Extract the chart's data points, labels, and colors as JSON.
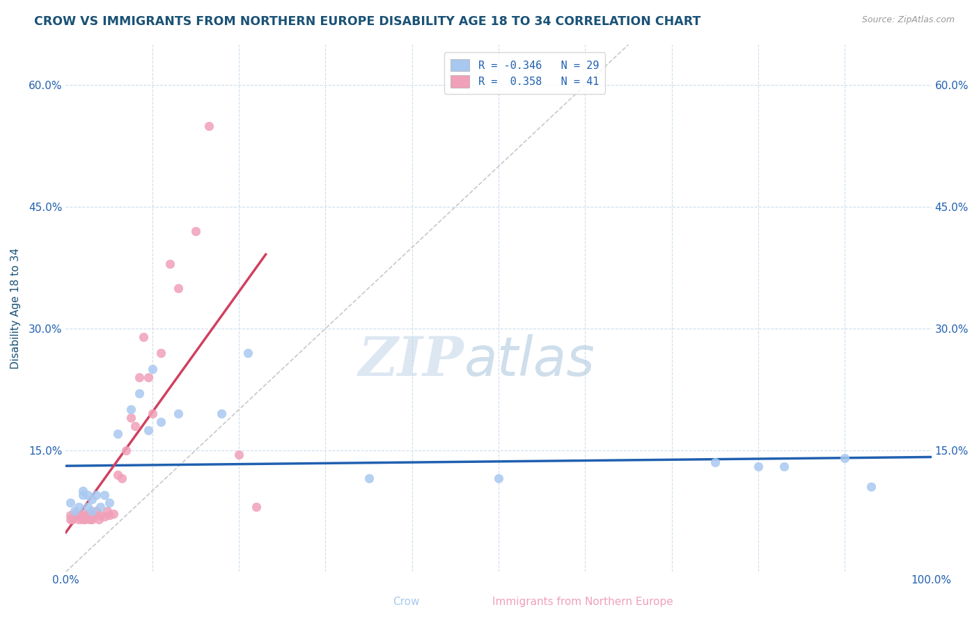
{
  "title": "CROW VS IMMIGRANTS FROM NORTHERN EUROPE DISABILITY AGE 18 TO 34 CORRELATION CHART",
  "source": "Source: ZipAtlas.com",
  "ylabel": "Disability Age 18 to 34",
  "xlim": [
    0.0,
    1.0
  ],
  "ylim": [
    0.0,
    0.65
  ],
  "xtick_positions": [
    0.0,
    0.1,
    0.2,
    0.3,
    0.4,
    0.5,
    0.6,
    0.7,
    0.8,
    0.9,
    1.0
  ],
  "xticklabels": [
    "0.0%",
    "",
    "",
    "",
    "",
    "",
    "",
    "",
    "",
    "",
    "100.0%"
  ],
  "ytick_positions": [
    0.0,
    0.15,
    0.3,
    0.45,
    0.6
  ],
  "yticklabels": [
    "",
    "15.0%",
    "30.0%",
    "45.0%",
    "60.0%"
  ],
  "legend_R1": "R = -0.346",
  "legend_N1": "N = 29",
  "legend_R2": "R =  0.358",
  "legend_N2": "N = 41",
  "crow_color": "#a8c8f0",
  "immigrant_color": "#f0a0b8",
  "crow_line_color": "#2060b0",
  "immigrant_line_color": "#d04060",
  "diagonal_color": "#c8c8c8",
  "title_color": "#1a5276",
  "axis_label_color": "#1a5276",
  "right_tick_color": "#2060b0",
  "background_color": "#ffffff",
  "crow_x": [
    0.005,
    0.01,
    0.015,
    0.02,
    0.02,
    0.025,
    0.025,
    0.03,
    0.03,
    0.035,
    0.04,
    0.045,
    0.05,
    0.06,
    0.075,
    0.085,
    0.095,
    0.1,
    0.11,
    0.13,
    0.18,
    0.21,
    0.35,
    0.5,
    0.75,
    0.8,
    0.83,
    0.9,
    0.93
  ],
  "crow_y": [
    0.085,
    0.075,
    0.08,
    0.095,
    0.1,
    0.08,
    0.095,
    0.075,
    0.09,
    0.095,
    0.08,
    0.095,
    0.085,
    0.17,
    0.2,
    0.22,
    0.175,
    0.25,
    0.185,
    0.195,
    0.195,
    0.27,
    0.115,
    0.115,
    0.135,
    0.13,
    0.13,
    0.14,
    0.105
  ],
  "immigrant_x": [
    0.005,
    0.005,
    0.008,
    0.01,
    0.01,
    0.012,
    0.015,
    0.015,
    0.018,
    0.02,
    0.02,
    0.022,
    0.025,
    0.025,
    0.028,
    0.03,
    0.03,
    0.032,
    0.035,
    0.038,
    0.04,
    0.045,
    0.048,
    0.05,
    0.055,
    0.06,
    0.065,
    0.07,
    0.075,
    0.08,
    0.085,
    0.09,
    0.095,
    0.1,
    0.11,
    0.12,
    0.13,
    0.15,
    0.165,
    0.2,
    0.22
  ],
  "immigrant_y": [
    0.065,
    0.07,
    0.065,
    0.068,
    0.072,
    0.07,
    0.065,
    0.07,
    0.068,
    0.065,
    0.072,
    0.065,
    0.068,
    0.072,
    0.065,
    0.065,
    0.072,
    0.068,
    0.075,
    0.065,
    0.07,
    0.068,
    0.075,
    0.07,
    0.072,
    0.12,
    0.115,
    0.15,
    0.19,
    0.18,
    0.24,
    0.29,
    0.24,
    0.195,
    0.27,
    0.38,
    0.35,
    0.42,
    0.55,
    0.145,
    0.08
  ],
  "watermark_zip": "ZIP",
  "watermark_atlas": "atlas",
  "grid_color": "#ccdded",
  "dot_size": 80
}
